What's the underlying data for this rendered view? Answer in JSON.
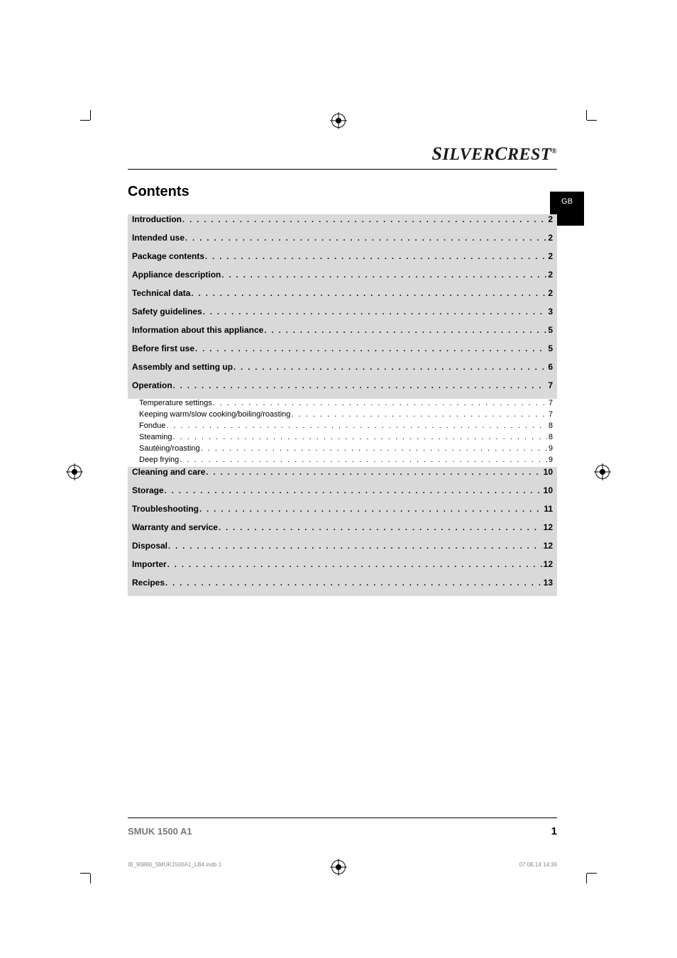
{
  "brand": {
    "first": "S",
    "word1": "ILVER",
    "second": "C",
    "word2": "REST",
    "reg": "®"
  },
  "contents_title": "Contents",
  "lang_tab": "GB",
  "toc": [
    {
      "type": "main",
      "label": "Introduction",
      "page": "2"
    },
    {
      "type": "main",
      "label": "Intended use",
      "page": "2"
    },
    {
      "type": "main",
      "label": "Package contents",
      "page": "2"
    },
    {
      "type": "main",
      "label": "Appliance description",
      "page": "2"
    },
    {
      "type": "main",
      "label": "Technical data",
      "page": "2"
    },
    {
      "type": "main",
      "label": "Safety guidelines",
      "page": "3"
    },
    {
      "type": "main",
      "label": "Information about this appliance",
      "page": "5"
    },
    {
      "type": "main",
      "label": "Before first use",
      "page": "5"
    },
    {
      "type": "main",
      "label": "Assembly and setting up",
      "page": "6"
    },
    {
      "type": "main",
      "label": "Operation",
      "page": "7"
    },
    {
      "type": "sub",
      "label": "Temperature settings",
      "page": "7"
    },
    {
      "type": "sub",
      "label": "Keeping warm/slow cooking/boiling/roasting",
      "page": "7"
    },
    {
      "type": "sub",
      "label": "Fondue",
      "page": "8"
    },
    {
      "type": "sub",
      "label": "Steaming",
      "page": "8"
    },
    {
      "type": "sub",
      "label": "Sautéing/roasting",
      "page": "9"
    },
    {
      "type": "sub",
      "label": "Deep frying",
      "page": "9"
    },
    {
      "type": "main",
      "label": "Cleaning and care",
      "page": "10"
    },
    {
      "type": "main",
      "label": "Storage",
      "page": "10"
    },
    {
      "type": "main",
      "label": "Troubleshooting",
      "page": "11"
    },
    {
      "type": "main",
      "label": "Warranty and service",
      "page": "12"
    },
    {
      "type": "main",
      "label": "Disposal",
      "page": "12"
    },
    {
      "type": "main",
      "label": "Importer",
      "page": "12"
    },
    {
      "type": "main",
      "label": "Recipes",
      "page": "13"
    }
  ],
  "footer": {
    "model": "SMUK 1500 A1",
    "page": "1"
  },
  "printinfo": {
    "file": "IB_90860_SMUK1500A1_LB4.indb   1",
    "datetime": "07.08.14   14:36"
  },
  "colors": {
    "toc_bg": "#d9d9d9",
    "tab_bg": "#000000",
    "tab_fg": "#ffffff"
  }
}
